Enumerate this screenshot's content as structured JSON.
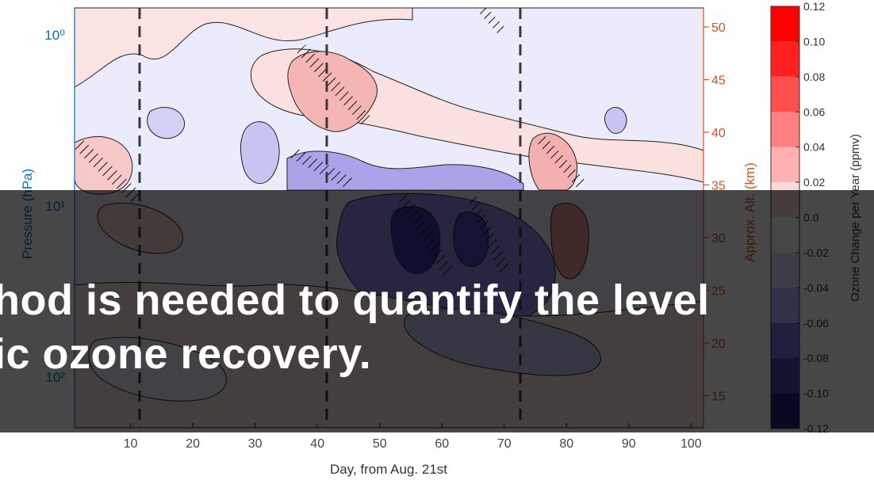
{
  "chart_data": {
    "type": "heatmap",
    "title": "",
    "xlabel": "Day, from Aug. 21st",
    "ylabel_left": "Pressure (hPa)",
    "ylabel_right": "Approx. Alt. (km)",
    "colorbar_label": "Ozone Change per Year (ppmv)",
    "x_ticks": [
      10,
      20,
      30,
      40,
      50,
      60,
      70,
      80,
      90,
      100
    ],
    "x_range": [
      1,
      102
    ],
    "y_left_ticks": [
      "10⁰",
      "10¹",
      "10²"
    ],
    "y_left_scale": "log",
    "y_right_ticks": [
      50,
      45,
      40,
      35,
      30,
      25,
      20,
      15
    ],
    "colorbar_ticks": [
      "0.12",
      "0.10",
      "0.08",
      "0.06",
      "0.04",
      "0.02",
      "0.0",
      "-0.02",
      "-0.04",
      "-0.06",
      "-0.08",
      "-0.10",
      "-0.12"
    ],
    "colorbar_colors": [
      "#ff0000",
      "#ff2020",
      "#ff5050",
      "#ff8080",
      "#ffb0b0",
      "#ffd8d8",
      "#ffffff",
      "#dcdcff",
      "#b0b0ff",
      "#7070e0",
      "#4040b0",
      "#202080",
      "#000050"
    ],
    "vertical_lines_day": [
      11,
      41,
      72
    ],
    "axis_colors": {
      "left": "#0072bd",
      "right": "#d95319"
    }
  },
  "caption": {
    "line1": "hod is needed to quantify the level",
    "line2": "ic ozone recovery."
  }
}
